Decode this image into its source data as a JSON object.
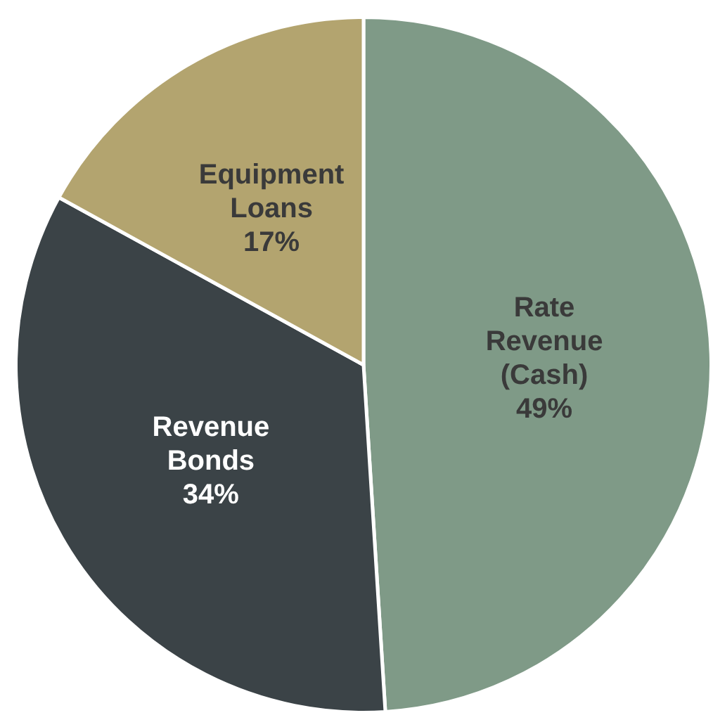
{
  "chart_data": {
    "type": "pie",
    "categories": [
      "Rate Revenue (Cash)",
      "Revenue Bonds",
      "Equipment Loans"
    ],
    "values": [
      49,
      34,
      17
    ],
    "colors": [
      "#7f9a87",
      "#3b4347",
      "#b3a46f"
    ],
    "value_labels": [
      "49%",
      "34%",
      "17%"
    ],
    "legend": false
  }
}
